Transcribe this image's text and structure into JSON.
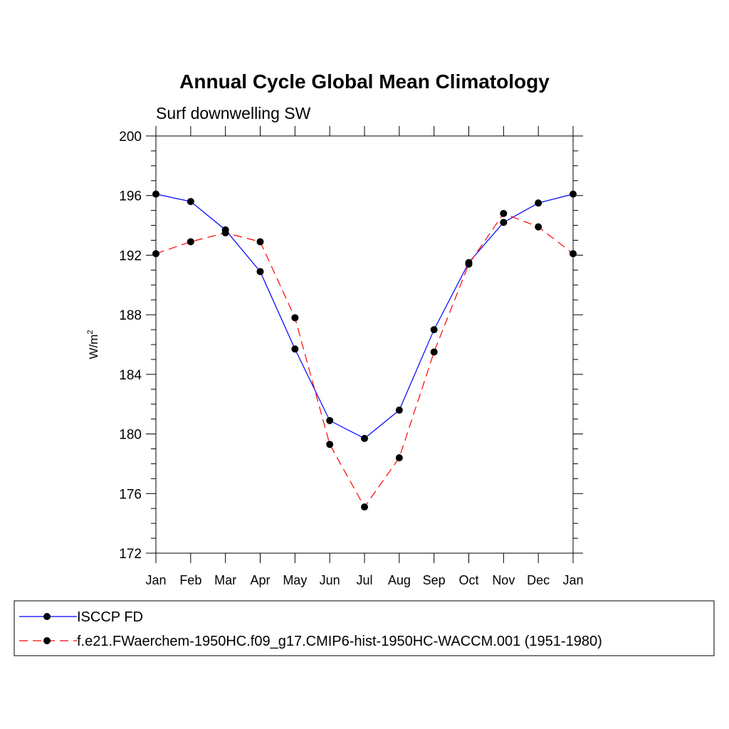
{
  "chart_data": {
    "type": "line",
    "title": "Annual Cycle Global Mean Climatology",
    "subtitle": "Surf downwelling SW",
    "xlabel": "",
    "ylabel_base": "W/m",
    "ylabel_sup": "2",
    "categories": [
      "Jan",
      "Feb",
      "Mar",
      "Apr",
      "May",
      "Jun",
      "Jul",
      "Aug",
      "Sep",
      "Oct",
      "Nov",
      "Dec",
      "Jan"
    ],
    "yticks": [
      "172",
      "176",
      "180",
      "184",
      "188",
      "192",
      "196",
      "200"
    ],
    "ylim": [
      172,
      200
    ],
    "grid": false,
    "legend_placement": "bottom",
    "series": [
      {
        "name": "ISCCP FD",
        "color": "#0000ff",
        "dash": "solid",
        "marker": "circle",
        "values": [
          196.1,
          195.6,
          193.7,
          190.9,
          185.7,
          180.9,
          179.7,
          181.6,
          187.0,
          191.5,
          194.2,
          195.5,
          196.1
        ]
      },
      {
        "name": "f.e21.FWaerchem-1950HC.f09_g17.CMIP6-hist-1950HC-WACCM.001 (1951-1980)",
        "color": "#ff0000",
        "dash": "dashed",
        "marker": "circle",
        "values": [
          192.1,
          192.9,
          193.5,
          192.9,
          187.8,
          179.3,
          175.1,
          178.4,
          185.5,
          191.4,
          194.8,
          193.9,
          192.1
        ]
      }
    ]
  }
}
